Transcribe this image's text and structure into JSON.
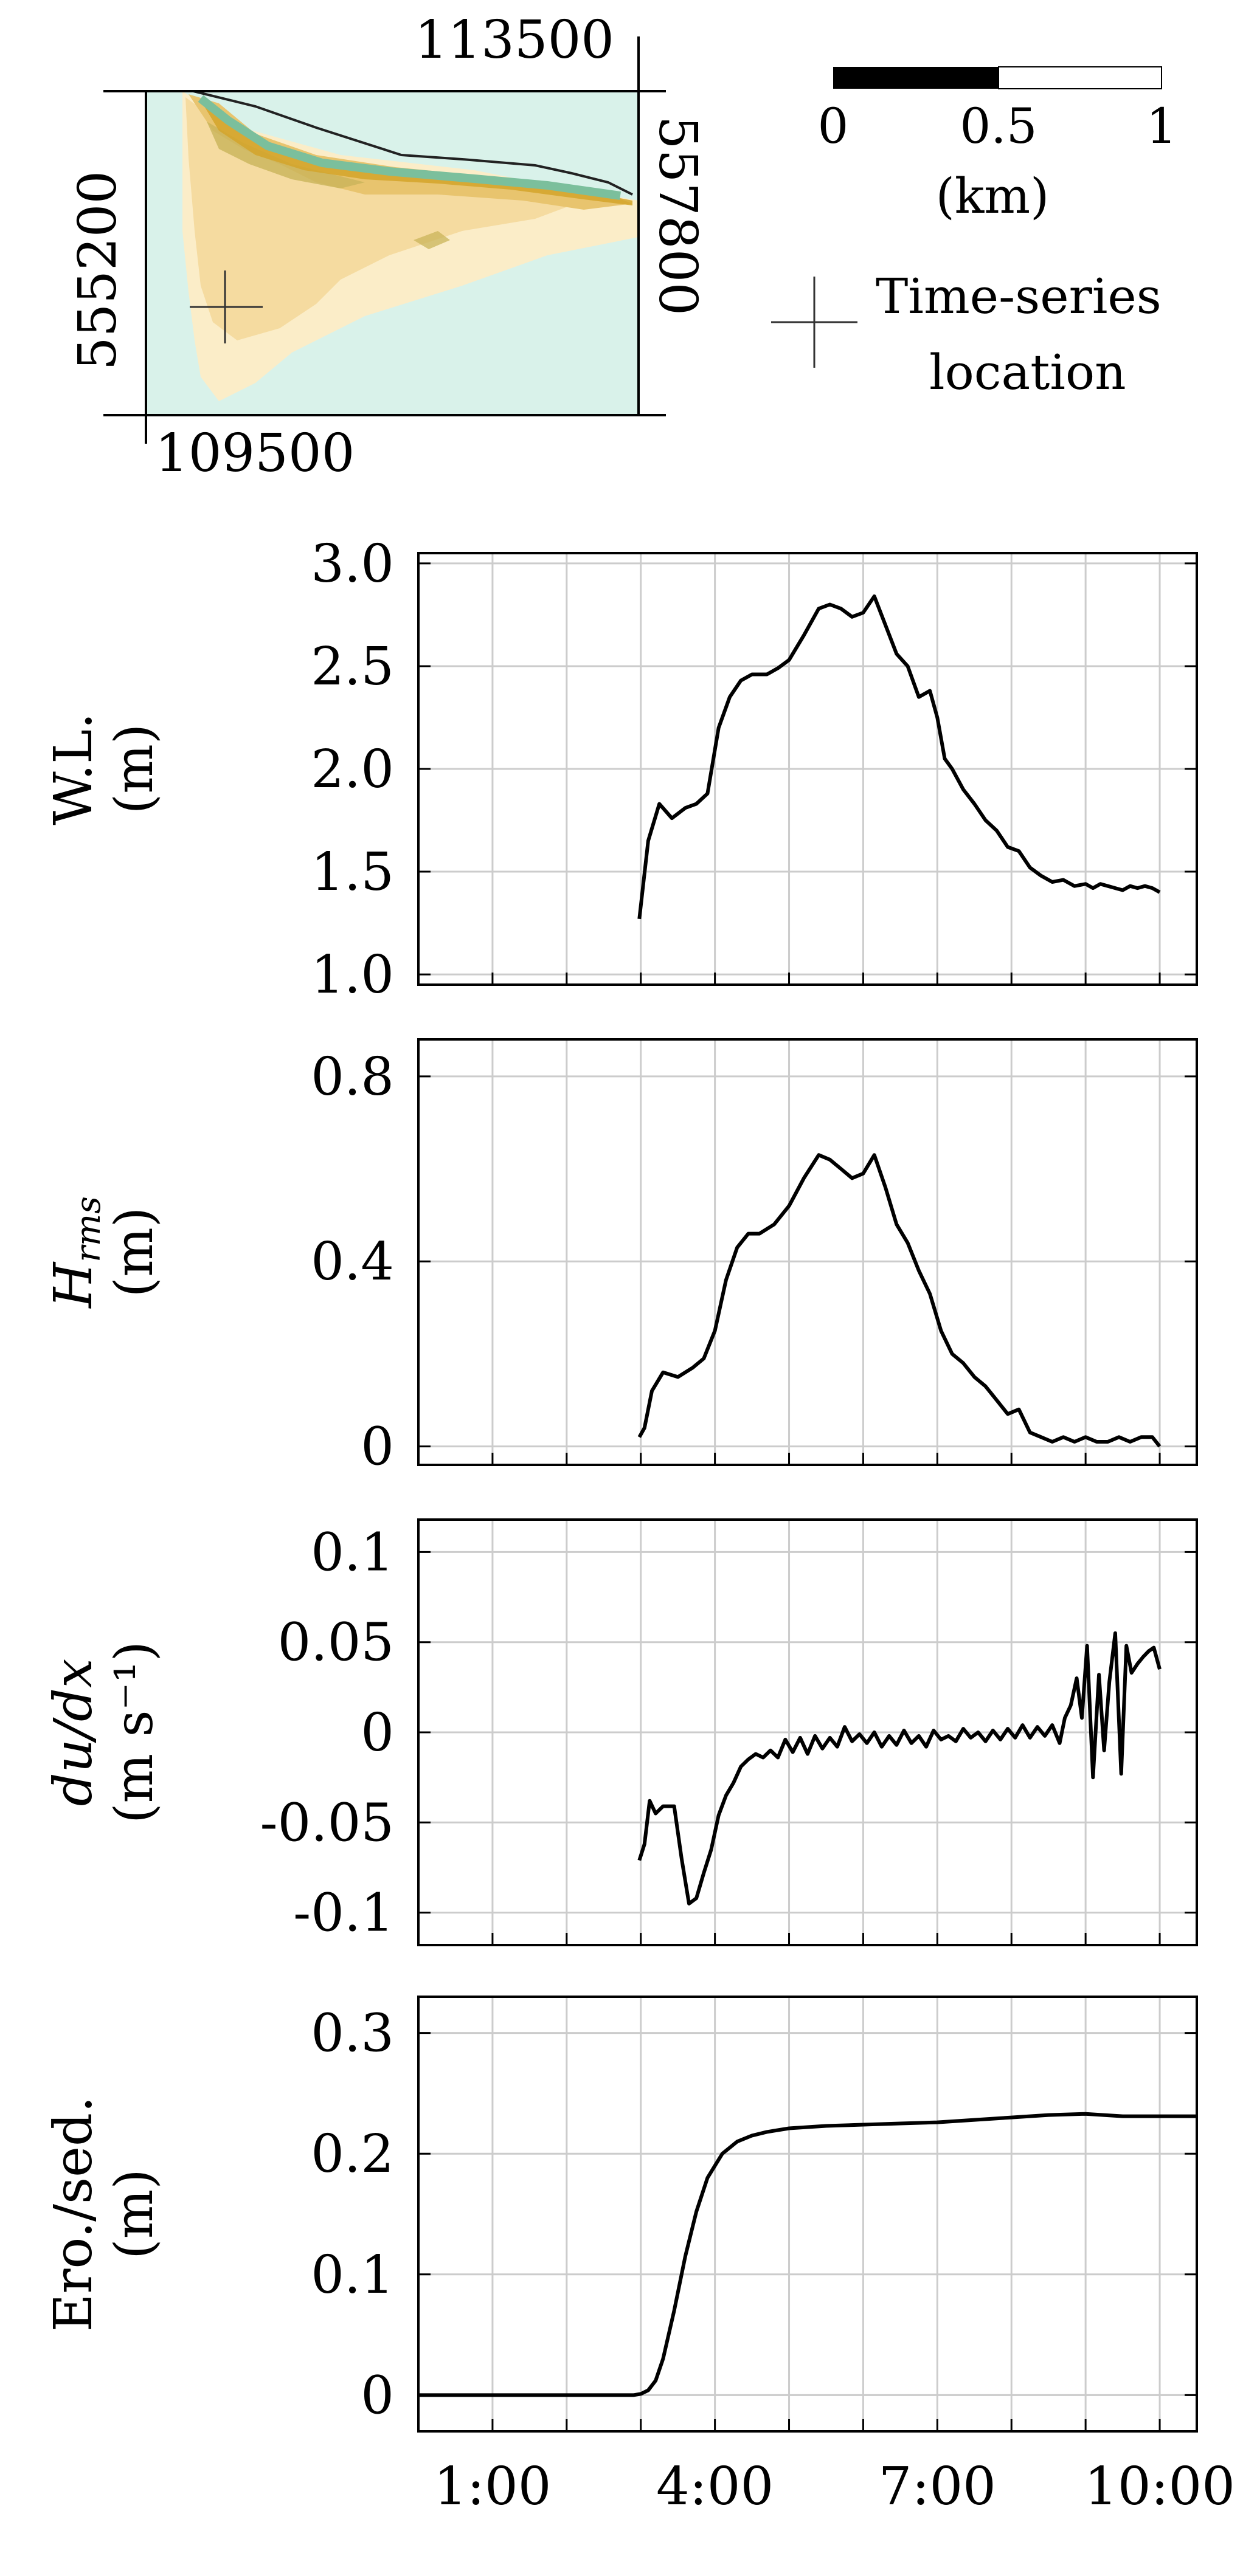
{
  "map": {
    "coord_top": "113500",
    "coord_right": "557800",
    "coord_left": "555200",
    "coord_bottom": "109500",
    "scale_ticks": [
      "0",
      "0.5",
      "1"
    ],
    "scale_unit": "(km)",
    "legend_line1": "Time-series",
    "legend_line2": "location",
    "colors": {
      "sea": "#d9f2ea",
      "sand_light": "#fbedc8",
      "sand_mid": "#f5dba0",
      "sand_dark": "#e8c46e",
      "vegetation": "#c9b45a",
      "channel": "#7bbf9c",
      "dune": "#d4a52a"
    }
  },
  "x_ticks": [
    "1:00",
    "4:00",
    "7:00",
    "10:00"
  ],
  "chart_data": [
    {
      "type": "line",
      "ylabel_line1": "W.L.",
      "ylabel_line2": "(m)",
      "ylim": [
        0.95,
        3.05
      ],
      "y_ticks": [
        "1.0",
        "1.5",
        "2.0",
        "2.5",
        "3.0"
      ],
      "y_tick_values": [
        1.0,
        1.5,
        2.0,
        2.5,
        3.0
      ],
      "x_hours": [
        2.98,
        3.1,
        3.25,
        3.42,
        3.6,
        3.75,
        3.9,
        4.05,
        4.2,
        4.35,
        4.5,
        4.7,
        4.85,
        5.0,
        5.2,
        5.4,
        5.55,
        5.7,
        5.85,
        6.0,
        6.15,
        6.3,
        6.45,
        6.6,
        6.75,
        6.9,
        7.0,
        7.1,
        7.2,
        7.35,
        7.5,
        7.65,
        7.8,
        7.95,
        8.1,
        8.25,
        8.4,
        8.55,
        8.7,
        8.85,
        9.0,
        9.1,
        9.2,
        9.3,
        9.4,
        9.5,
        9.6,
        9.7,
        9.8,
        9.9,
        10.0
      ],
      "values": [
        1.27,
        1.65,
        1.83,
        1.76,
        1.81,
        1.83,
        1.88,
        2.2,
        2.35,
        2.43,
        2.46,
        2.46,
        2.49,
        2.53,
        2.65,
        2.78,
        2.8,
        2.78,
        2.74,
        2.76,
        2.84,
        2.7,
        2.56,
        2.5,
        2.35,
        2.38,
        2.25,
        2.05,
        2.0,
        1.9,
        1.83,
        1.75,
        1.7,
        1.62,
        1.6,
        1.52,
        1.48,
        1.45,
        1.46,
        1.43,
        1.44,
        1.42,
        1.44,
        1.43,
        1.42,
        1.41,
        1.43,
        1.42,
        1.43,
        1.42,
        1.4
      ]
    },
    {
      "type": "line",
      "ylabel_line1": "H_rms",
      "ylabel_line2": "(m)",
      "ylim": [
        -0.04,
        0.88
      ],
      "y_ticks": [
        "0",
        "0.4",
        "0.8"
      ],
      "y_tick_values": [
        0,
        0.4,
        0.8
      ],
      "x_hours": [
        2.98,
        3.05,
        3.15,
        3.3,
        3.5,
        3.7,
        3.85,
        4.0,
        4.15,
        4.3,
        4.45,
        4.6,
        4.8,
        5.0,
        5.2,
        5.4,
        5.55,
        5.7,
        5.85,
        6.0,
        6.15,
        6.3,
        6.45,
        6.6,
        6.75,
        6.9,
        7.05,
        7.2,
        7.35,
        7.5,
        7.65,
        7.8,
        7.95,
        8.1,
        8.25,
        8.4,
        8.55,
        8.7,
        8.85,
        9.0,
        9.15,
        9.3,
        9.45,
        9.6,
        9.75,
        9.9,
        10.0
      ],
      "values": [
        0.02,
        0.04,
        0.12,
        0.16,
        0.15,
        0.17,
        0.19,
        0.25,
        0.36,
        0.43,
        0.46,
        0.46,
        0.48,
        0.52,
        0.58,
        0.63,
        0.62,
        0.6,
        0.58,
        0.59,
        0.63,
        0.56,
        0.48,
        0.44,
        0.38,
        0.33,
        0.25,
        0.2,
        0.18,
        0.15,
        0.13,
        0.1,
        0.07,
        0.08,
        0.03,
        0.02,
        0.01,
        0.02,
        0.01,
        0.02,
        0.01,
        0.01,
        0.02,
        0.01,
        0.02,
        0.02,
        0.0
      ]
    },
    {
      "type": "line",
      "ylabel_line1": "du/dx",
      "ylabel_line2": "(m s⁻¹)",
      "ylim": [
        -0.118,
        0.118
      ],
      "y_ticks": [
        "0.1",
        "0.05",
        "0",
        "-0.05",
        "-0.1"
      ],
      "y_tick_values": [
        0.1,
        0.05,
        0,
        -0.05,
        -0.1
      ],
      "x_hours": [
        2.98,
        3.05,
        3.12,
        3.2,
        3.3,
        3.45,
        3.55,
        3.65,
        3.75,
        3.85,
        3.95,
        4.05,
        4.15,
        4.25,
        4.35,
        4.45,
        4.55,
        4.65,
        4.75,
        4.85,
        4.95,
        5.05,
        5.15,
        5.25,
        5.35,
        5.45,
        5.55,
        5.65,
        5.75,
        5.85,
        5.95,
        6.05,
        6.15,
        6.25,
        6.35,
        6.45,
        6.55,
        6.65,
        6.75,
        6.85,
        6.95,
        7.05,
        7.15,
        7.25,
        7.35,
        7.45,
        7.55,
        7.65,
        7.75,
        7.85,
        7.95,
        8.05,
        8.15,
        8.25,
        8.35,
        8.45,
        8.55,
        8.65,
        8.72,
        8.8,
        8.88,
        8.95,
        9.02,
        9.1,
        9.18,
        9.25,
        9.32,
        9.4,
        9.48,
        9.55,
        9.62,
        9.7,
        9.78,
        9.85,
        9.92,
        10.0
      ],
      "values": [
        -0.071,
        -0.062,
        -0.038,
        -0.045,
        -0.041,
        -0.041,
        -0.07,
        -0.095,
        -0.092,
        -0.078,
        -0.065,
        -0.046,
        -0.035,
        -0.028,
        -0.019,
        -0.015,
        -0.012,
        -0.014,
        -0.01,
        -0.014,
        -0.004,
        -0.011,
        -0.003,
        -0.012,
        -0.002,
        -0.009,
        -0.003,
        -0.008,
        0.003,
        -0.005,
        -0.001,
        -0.006,
        0.0,
        -0.008,
        -0.002,
        -0.007,
        0.001,
        -0.006,
        -0.002,
        -0.008,
        0.001,
        -0.004,
        -0.002,
        -0.005,
        0.002,
        -0.003,
        0.0,
        -0.005,
        0.001,
        -0.004,
        0.002,
        -0.003,
        0.004,
        -0.003,
        0.003,
        -0.002,
        0.004,
        -0.006,
        0.008,
        0.015,
        0.03,
        0.008,
        0.048,
        -0.025,
        0.032,
        -0.01,
        0.028,
        0.055,
        -0.023,
        0.048,
        0.033,
        0.038,
        0.042,
        0.045,
        0.047,
        0.035
      ]
    },
    {
      "type": "line",
      "ylabel_line1": "Ero./sed.",
      "ylabel_line2": "(m)",
      "ylim": [
        -0.03,
        0.33
      ],
      "y_ticks": [
        "0",
        "0.1",
        "0.2",
        "0.3"
      ],
      "y_tick_values": [
        0,
        0.1,
        0.2,
        0.3
      ],
      "x_hours": [
        0.0,
        1.0,
        2.0,
        2.9,
        3.0,
        3.1,
        3.2,
        3.3,
        3.45,
        3.6,
        3.75,
        3.9,
        4.1,
        4.3,
        4.5,
        4.7,
        5.0,
        5.5,
        6.0,
        6.5,
        7.0,
        7.5,
        8.0,
        8.5,
        9.0,
        9.5,
        10.0,
        10.5
      ],
      "values": [
        0.0,
        0.0,
        0.0,
        0.0,
        0.001,
        0.004,
        0.012,
        0.03,
        0.07,
        0.115,
        0.152,
        0.18,
        0.2,
        0.21,
        0.215,
        0.218,
        0.221,
        0.223,
        0.224,
        0.225,
        0.226,
        0.228,
        0.23,
        0.232,
        0.233,
        0.231,
        0.231,
        0.231
      ]
    }
  ]
}
